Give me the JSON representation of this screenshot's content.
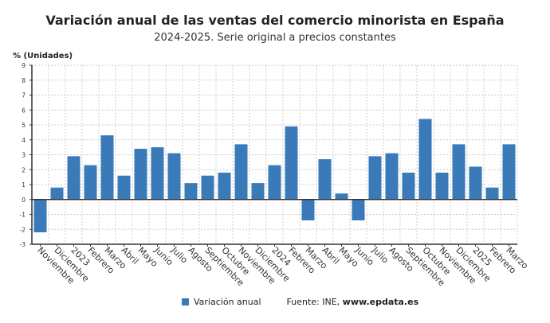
{
  "chart_data": {
    "type": "bar",
    "title": "Variación anual de las ventas del comercio minorista en España",
    "subtitle": "2024-2025. Serie original a precios constantes",
    "ylabel": "% (Unidades)",
    "xlabel": "",
    "ylim": [
      -3,
      9
    ],
    "yticks": [
      -3,
      -2,
      -1,
      0,
      1,
      2,
      3,
      4,
      5,
      6,
      7,
      8,
      9
    ],
    "grid": true,
    "legend_position": "bottom",
    "categories": [
      "Noviembre",
      "Diciembre",
      "2023",
      "Febrero",
      "Marzo",
      "Abril",
      "Mayo",
      "Junio",
      "Julio",
      "Agosto",
      "Septiembre",
      "Octubre",
      "Noviembre",
      "Diciembre",
      "2024",
      "Febrero",
      "Marzo",
      "Abril",
      "Mayo",
      "Junio",
      "Julio",
      "Agosto",
      "Septiembre",
      "Octubre",
      "Noviembre",
      "Diciembre",
      "2025",
      "Febrero",
      "Marzo"
    ],
    "series": [
      {
        "name": "Variación anual",
        "color": "#3a7ab8",
        "values": [
          -2.2,
          0.8,
          2.9,
          2.3,
          4.3,
          1.6,
          3.4,
          3.5,
          3.1,
          1.1,
          1.6,
          1.8,
          3.7,
          1.1,
          2.3,
          4.9,
          -1.4,
          2.7,
          0.4,
          -1.4,
          2.9,
          3.1,
          1.8,
          5.4,
          1.8,
          3.7,
          2.2,
          0.8,
          3.7
        ]
      }
    ],
    "source": "Fuente: INE, www.epdata.es"
  }
}
